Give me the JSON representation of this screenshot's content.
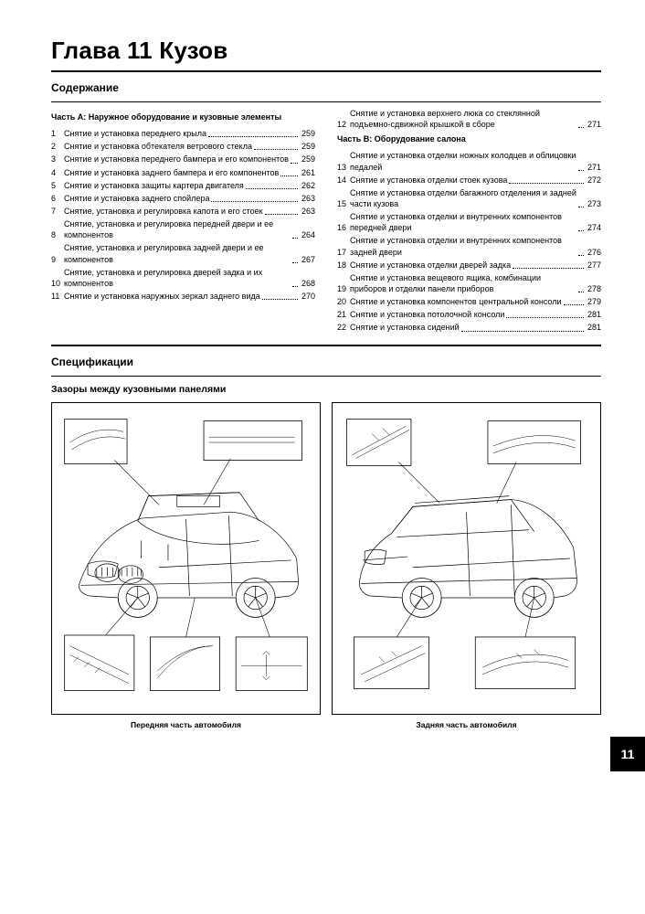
{
  "chapter_title": "Глава 11 Кузов",
  "contents_heading": "Содержание",
  "spec_heading": "Спецификации",
  "gap_heading": "Зазоры между кузовными панелями",
  "side_tab": "11",
  "toc": {
    "left": {
      "part_title": "Часть А: Наружное оборудование и кузовные элементы",
      "items": [
        {
          "n": "1",
          "t": "Снятие и установка переднего крыла",
          "p": "259"
        },
        {
          "n": "2",
          "t": "Снятие и установка обтекателя ветрового стекла",
          "p": "259"
        },
        {
          "n": "3",
          "t": "Снятие и установка переднего бампера и его компонентов",
          "p": "259"
        },
        {
          "n": "4",
          "t": "Снятие и установка заднего бампера и его компонентов",
          "p": "261"
        },
        {
          "n": "5",
          "t": "Снятие и установка защиты картера двигателя",
          "p": "262"
        },
        {
          "n": "6",
          "t": "Снятие и установка заднего спойлера",
          "p": "263"
        },
        {
          "n": "7",
          "t": "Снятие, установка и регулировка капота и его стоек",
          "p": "263"
        },
        {
          "n": "8",
          "t": "Снятие, установка и регулировка передней двери и ее компонентов",
          "p": "264"
        },
        {
          "n": "9",
          "t": "Снятие, установка и регулировка задней двери и ее компонентов",
          "p": "267"
        },
        {
          "n": "10",
          "t": "Снятие, установка и регулировка дверей задка и их компонентов",
          "p": "268"
        },
        {
          "n": "11",
          "t": "Снятие и установка наружных зеркал заднего вида",
          "p": "270"
        }
      ]
    },
    "right": {
      "top_items": [
        {
          "n": "12",
          "t": "Снятие и установка верхнего люка со стеклянной подъемно-сдвижной крышкой в сборе",
          "p": "271"
        }
      ],
      "part_title": "Часть В: Оборудование салона",
      "items": [
        {
          "n": "13",
          "t": "Снятие и установка отделки ножных колодцев и облицовки педалей",
          "p": "271"
        },
        {
          "n": "14",
          "t": "Снятие и установка отделки стоек кузова",
          "p": "272"
        },
        {
          "n": "15",
          "t": "Снятие и установка отделки багажного отделения и задней части кузова",
          "p": "273"
        },
        {
          "n": "16",
          "t": "Снятие и установка отделки и внутренних компонентов передней двери",
          "p": "274"
        },
        {
          "n": "17",
          "t": "Снятие и установка отделки и внутренних компонентов задней двери",
          "p": "276"
        },
        {
          "n": "18",
          "t": "Снятие и установка отделки дверей задка",
          "p": "277"
        },
        {
          "n": "19",
          "t": "Снятие и установка вещевого ящика, комбинации приборов и отделки панели приборов",
          "p": "278"
        },
        {
          "n": "20",
          "t": "Снятие и установка компонентов центральной консоли",
          "p": "279"
        },
        {
          "n": "21",
          "t": "Снятие и установка потолочной консоли",
          "p": "281"
        },
        {
          "n": "22",
          "t": "Снятие и установка сидений",
          "p": "281"
        }
      ]
    }
  },
  "captions": {
    "front": "Передняя часть автомобиля",
    "rear": "Задняя часть автомобиля"
  }
}
